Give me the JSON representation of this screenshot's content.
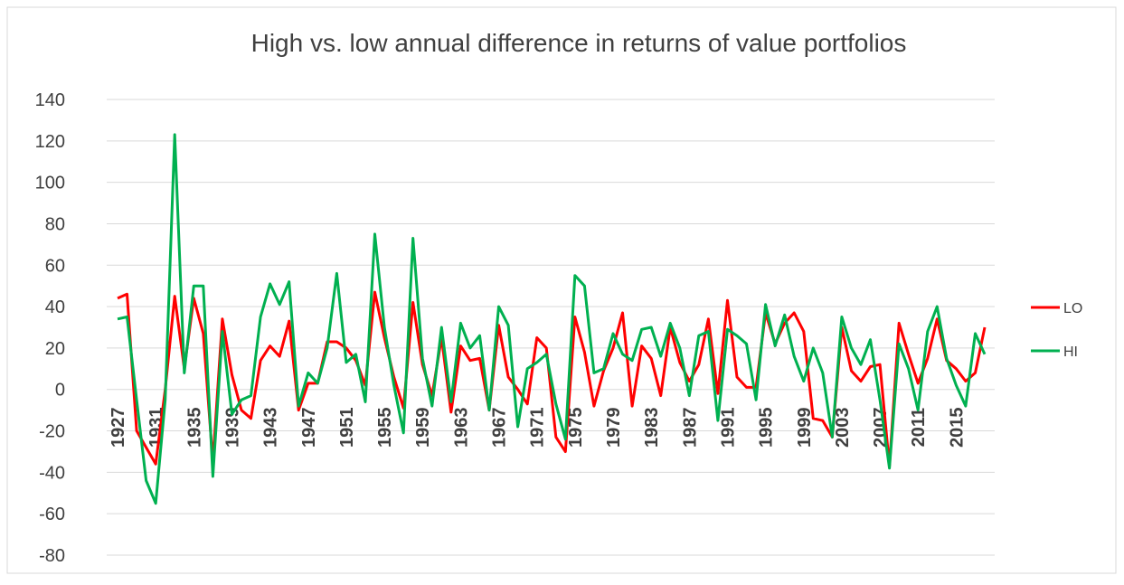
{
  "chart_data": {
    "type": "line",
    "title": "High vs. low annual difference in returns of value portfolios",
    "categories": [
      "1927",
      null,
      null,
      null,
      "1931",
      null,
      null,
      null,
      "1935",
      null,
      null,
      null,
      "1939",
      null,
      null,
      null,
      "1943",
      null,
      null,
      null,
      "1947",
      null,
      null,
      null,
      "1951",
      null,
      null,
      null,
      "1955",
      null,
      null,
      null,
      "1959",
      null,
      null,
      null,
      "1963",
      null,
      null,
      null,
      "1967",
      null,
      null,
      null,
      "1971",
      null,
      null,
      null,
      "1975",
      null,
      null,
      null,
      "1979",
      null,
      null,
      null,
      "1983",
      null,
      null,
      null,
      "1987",
      null,
      null,
      null,
      "1991",
      null,
      null,
      null,
      "1995",
      null,
      null,
      null,
      "1999",
      null,
      null,
      null,
      "2003",
      null,
      null,
      null,
      "2007",
      null,
      null,
      null,
      "2011",
      null,
      null,
      null,
      "2015",
      null,
      null,
      null
    ],
    "series": [
      {
        "name": "LO",
        "color": "#ff0000",
        "values": [
          44,
          46,
          -20,
          -28,
          -36,
          0,
          45,
          10,
          44,
          27,
          -35,
          34,
          7,
          -10,
          -14,
          14,
          21,
          16,
          33,
          -10,
          3,
          3,
          23,
          23,
          20,
          14,
          2,
          47,
          25,
          6,
          -9,
          42,
          12,
          -3,
          25,
          -11,
          21,
          14,
          15,
          -10,
          31,
          6,
          0,
          -7,
          25,
          20,
          -23,
          -30,
          35,
          18,
          -8,
          9,
          20,
          37,
          -8,
          21,
          15,
          -3,
          30,
          13,
          4,
          12,
          34,
          -2,
          43,
          6,
          1,
          1,
          37,
          22,
          32,
          37,
          28,
          -14,
          -15,
          -23,
          30,
          9,
          4,
          11,
          12,
          -37,
          32,
          17,
          3,
          15,
          34,
          14,
          10,
          4,
          8,
          30
        ]
      },
      {
        "name": "HI",
        "color": "#00b050",
        "values": [
          34,
          35,
          -5,
          -44,
          -55,
          -5,
          123,
          8,
          50,
          50,
          -42,
          28,
          -12,
          -5,
          -3,
          35,
          51,
          41,
          52,
          -8,
          8,
          3,
          20,
          56,
          13,
          17,
          -6,
          75,
          30,
          2,
          -21,
          73,
          15,
          -8,
          30,
          -6,
          32,
          20,
          26,
          -10,
          40,
          31,
          -18,
          10,
          13,
          17,
          -7,
          -24,
          55,
          50,
          8,
          10,
          27,
          17,
          14,
          29,
          30,
          16,
          32,
          20,
          -3,
          26,
          28,
          -15,
          29,
          26,
          22,
          -5,
          41,
          21,
          36,
          16,
          4,
          20,
          8,
          -23,
          35,
          20,
          12,
          24,
          -5,
          -38,
          22,
          10,
          -10,
          28,
          40,
          15,
          2,
          -8,
          27,
          17
        ]
      }
    ],
    "ylim": [
      -80,
      140
    ],
    "yticks": [
      -80,
      -60,
      -40,
      -20,
      0,
      20,
      40,
      60,
      80,
      100,
      120,
      140
    ],
    "grid": true,
    "legend": "right"
  }
}
